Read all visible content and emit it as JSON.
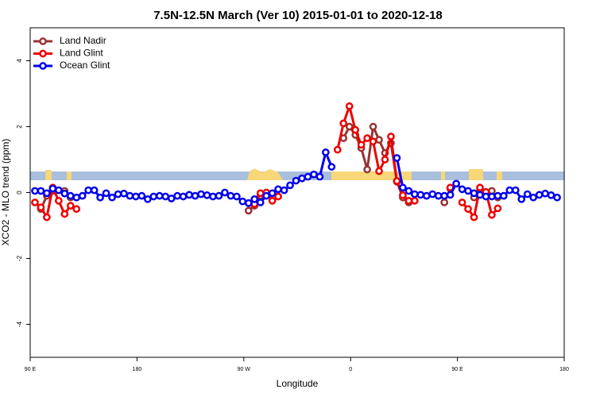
{
  "chart_data": {
    "type": "line",
    "title": "7.5N-12.5N March (Ver 10)   2015-01-01 to 2020-12-18",
    "x_label": "Longitude",
    "y_label": "XCO2 - MLO trend (ppm)",
    "xlim": [
      90,
      540
    ],
    "ylim": [
      -5,
      5
    ],
    "xticks": [
      {
        "value": 90,
        "label": "90 E"
      },
      {
        "value": 180,
        "label": "180"
      },
      {
        "value": 270,
        "label": "90 W"
      },
      {
        "value": 360,
        "label": "0"
      },
      {
        "value": 450,
        "label": "90 E"
      },
      {
        "value": 540,
        "label": "180"
      }
    ],
    "yticks": [
      -4,
      -2,
      0,
      2,
      4
    ],
    "legend": "top-left",
    "x": [
      94,
      99,
      104,
      109,
      114,
      119,
      124,
      129,
      134,
      139,
      144,
      149,
      154,
      159,
      164,
      169,
      174,
      179,
      184,
      189,
      194,
      199,
      204,
      209,
      214,
      219,
      224,
      229,
      234,
      239,
      244,
      249,
      254,
      259,
      264,
      269,
      274,
      279,
      284,
      289,
      294,
      299,
      304,
      309,
      314,
      319,
      324,
      329,
      334,
      339,
      344,
      349,
      354,
      359,
      364,
      369,
      374,
      379,
      384,
      389,
      394,
      399,
      404,
      409,
      414,
      419,
      424,
      429,
      434,
      439,
      444,
      449,
      454,
      459,
      464,
      469,
      474,
      479,
      484,
      489,
      494,
      499,
      504,
      509,
      514,
      519,
      524,
      529,
      534,
      539
    ],
    "series": [
      {
        "name": "Land Nadir",
        "color": "#993333",
        "values": [
          null,
          -0.5,
          -0.1,
          0.05,
          null,
          0.05,
          -0.15,
          null,
          null,
          null,
          null,
          null,
          null,
          null,
          null,
          null,
          null,
          null,
          null,
          null,
          null,
          null,
          null,
          null,
          null,
          null,
          null,
          null,
          null,
          null,
          null,
          null,
          null,
          null,
          null,
          null,
          -0.55,
          -0.4,
          -0.1,
          -0.05,
          null,
          null,
          null,
          null,
          null,
          null,
          null,
          null,
          null,
          null,
          null,
          null,
          1.65,
          2.0,
          1.75,
          1.35,
          0.7,
          2.0,
          1.6,
          1.2,
          1.5,
          0.33,
          -0.15,
          -0.3,
          null,
          null,
          null,
          null,
          null,
          -0.3,
          0.12,
          null,
          null,
          null,
          -0.15,
          0.05,
          null,
          0.05,
          -0.15,
          null,
          null,
          null,
          null,
          null,
          null,
          null,
          null,
          null,
          null,
          null
        ]
      },
      {
        "name": "Land Glint",
        "color": "#ee0000",
        "values": [
          -0.3,
          -0.45,
          -0.75,
          0.15,
          -0.25,
          -0.65,
          -0.4,
          -0.5,
          null,
          null,
          null,
          null,
          null,
          null,
          null,
          null,
          null,
          null,
          null,
          null,
          null,
          null,
          null,
          null,
          null,
          null,
          null,
          null,
          null,
          null,
          null,
          null,
          null,
          null,
          null,
          null,
          null,
          -0.35,
          -0.02,
          0.0,
          -0.25,
          -0.12,
          null,
          null,
          null,
          null,
          null,
          null,
          null,
          null,
          null,
          1.3,
          2.1,
          2.62,
          1.9,
          1.45,
          1.65,
          1.55,
          0.65,
          1.0,
          1.7,
          0.35,
          -0.08,
          -0.25,
          -0.25,
          null,
          null,
          null,
          null,
          null,
          0.15,
          null,
          -0.3,
          -0.5,
          -0.75,
          0.15,
          0.02,
          -0.68,
          -0.48,
          null,
          null,
          null,
          null,
          null,
          null,
          null,
          null,
          null,
          null,
          null
        ]
      },
      {
        "name": "Ocean Glint",
        "color": "#0000ee",
        "values": [
          0.05,
          0.05,
          -0.02,
          0.12,
          0.07,
          -0.03,
          -0.1,
          -0.15,
          -0.1,
          0.07,
          0.07,
          -0.15,
          -0.02,
          -0.15,
          -0.05,
          -0.03,
          -0.1,
          -0.12,
          -0.1,
          -0.2,
          -0.12,
          -0.1,
          -0.12,
          -0.18,
          -0.1,
          -0.12,
          -0.07,
          -0.1,
          -0.05,
          -0.08,
          -0.12,
          -0.1,
          0.0,
          -0.1,
          -0.12,
          -0.27,
          -0.32,
          -0.2,
          -0.3,
          -0.1,
          -0.02,
          0.1,
          0.07,
          0.22,
          0.36,
          0.43,
          0.48,
          0.55,
          0.48,
          1.22,
          0.78,
          null,
          null,
          null,
          null,
          null,
          null,
          null,
          null,
          null,
          null,
          1.05,
          0.15,
          0.05,
          -0.05,
          -0.07,
          -0.1,
          -0.05,
          -0.1,
          -0.1,
          -0.07,
          0.27,
          0.1,
          0.05,
          -0.02,
          -0.07,
          -0.12,
          -0.12,
          -0.1,
          -0.1,
          0.07,
          0.07,
          -0.2,
          -0.05,
          -0.15,
          -0.07,
          -0.03,
          -0.08,
          -0.15,
          null
        ]
      }
    ]
  }
}
